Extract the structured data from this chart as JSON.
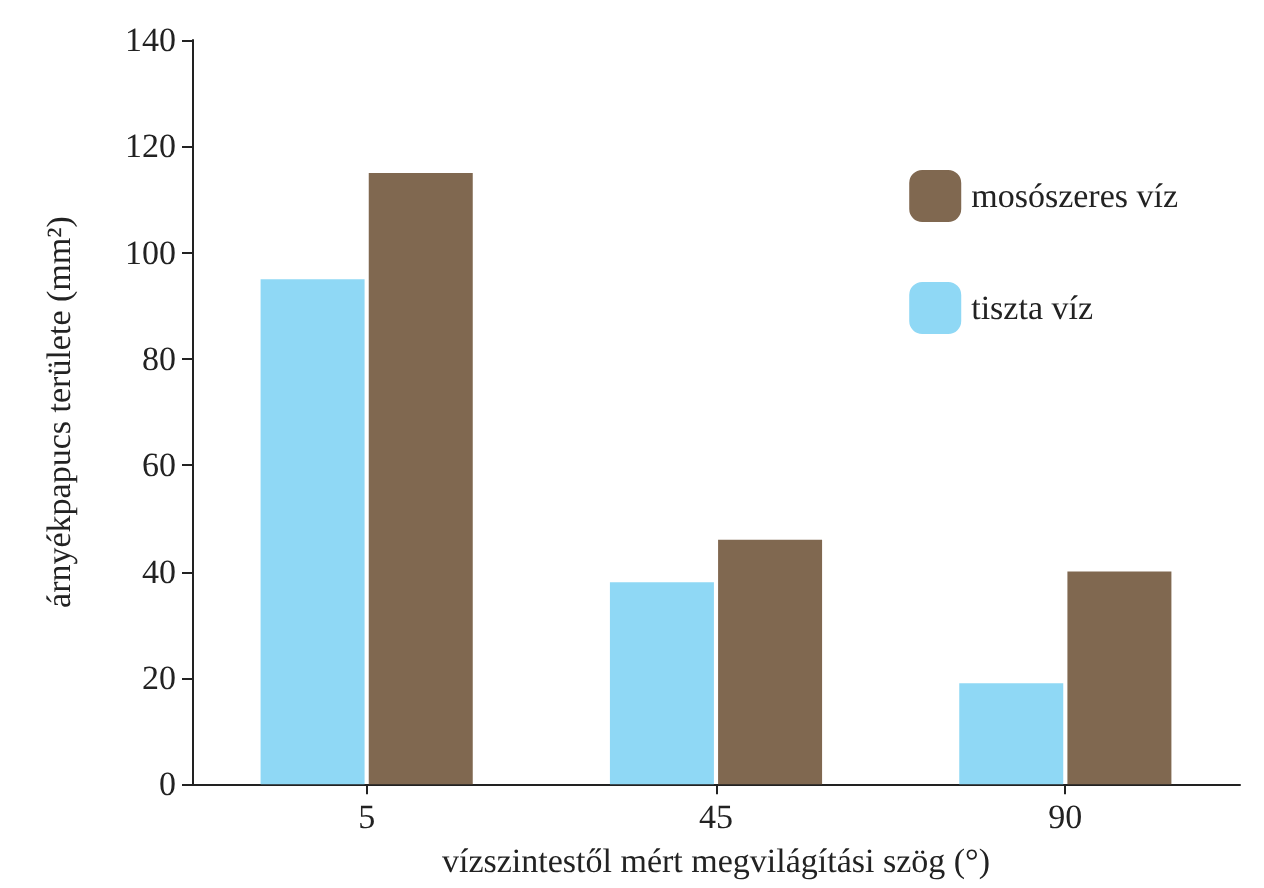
{
  "chart_data": {
    "type": "bar",
    "xlabel": "vízszintestől mért megvilágítási szög (°)",
    "ylabel": "árnyékpapucs területe (mm²)",
    "categories": [
      "5",
      "45",
      "90"
    ],
    "series": [
      {
        "name": "tiszta víz",
        "color": "#8fd8f5",
        "values": [
          95,
          38,
          19
        ]
      },
      {
        "name": "mosószeres víz",
        "color": "#806850",
        "values": [
          115,
          46,
          40
        ]
      }
    ],
    "ylim": [
      0,
      140
    ],
    "yticks": [
      0,
      20,
      40,
      60,
      80,
      100,
      120,
      140
    ],
    "grid": false,
    "legend": "top right"
  }
}
